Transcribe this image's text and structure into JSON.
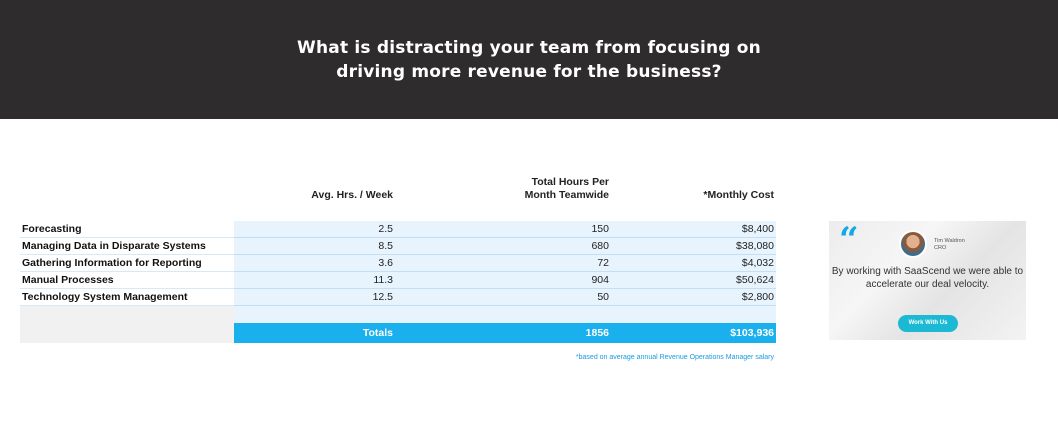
{
  "header": {
    "title": "What is distracting your team from focusing on driving more revenue for the business?"
  },
  "columns": {
    "avg_hours": "Avg. Hrs. / Week",
    "total_hours_line1": "Total Hours Per",
    "total_hours_line2": "Month Teamwide",
    "monthly_cost": "*Monthly Cost"
  },
  "rows": [
    {
      "label": "Forecasting",
      "avg": "2.5",
      "total": "150",
      "cost": "$8,400"
    },
    {
      "label": "Managing Data in Disparate Systems",
      "avg": "8.5",
      "total": "680",
      "cost": "$38,080"
    },
    {
      "label": "Gathering Information for Reporting",
      "avg": "3.6",
      "total": "72",
      "cost": "$4,032"
    },
    {
      "label": "Manual Processes",
      "avg": "11.3",
      "total": "904",
      "cost": "$50,624"
    },
    {
      "label": "Technology System Management",
      "avg": "12.5",
      "total": "50",
      "cost": "$2,800"
    }
  ],
  "totals": {
    "label": "Totals",
    "hours": "1856",
    "cost": "$103,936"
  },
  "footnote": "*based on average annual Revenue Operations Manager salary",
  "testimonial": {
    "quote_mark": "“",
    "name": "Tim Waldron",
    "role": "CRO",
    "quote": "By working with SaaScend we were able to accelerate our deal velocity.",
    "cta_label": "Work With Us"
  },
  "colors": {
    "header_bg": "#2f2c2d",
    "accent_blue": "#1ab0ee",
    "row_bg": "#e8f4fd",
    "cta_teal": "#1bb9d3"
  }
}
